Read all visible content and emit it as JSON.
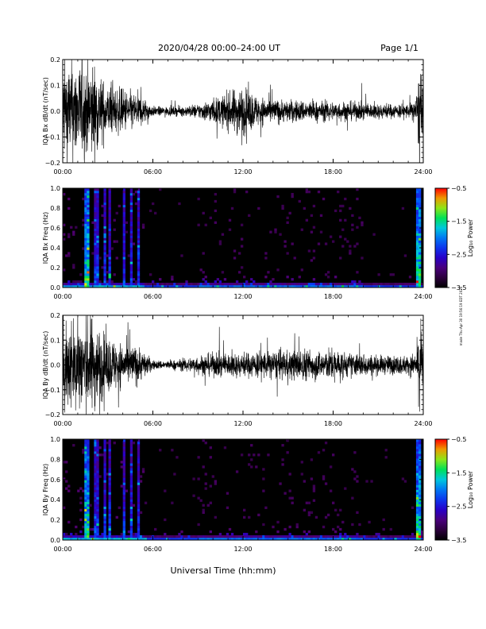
{
  "header": {
    "title": "2020/04/28  00:00–24:00 UT",
    "page_label": "Page 1/1"
  },
  "footer": {
    "xlabel": "Universal Time (hh:mm)"
  },
  "side_stamp": "made Thu Apr 30 19:56:19 EDT 2020",
  "chart_data": [
    {
      "type": "line",
      "panel": "bx-ts",
      "ylabel": "IQA Bx dB/dt (nT/sec)",
      "xlim": [
        0,
        24
      ],
      "ylim": [
        -0.2,
        0.2
      ],
      "x_ticks": [
        "00:00",
        "06:00",
        "12:00",
        "18:00",
        "24:00"
      ],
      "y_ticks": [
        "−0.2",
        "−0.1",
        "0.0",
        "0.1",
        "0.2"
      ],
      "envelope_hours": [
        0,
        1,
        1.5,
        2,
        2.5,
        3,
        4,
        5,
        5.5,
        6,
        7,
        8,
        9,
        10,
        11,
        11.7,
        12.3,
        13,
        14,
        15,
        16,
        17,
        18,
        19,
        20,
        21,
        22,
        23,
        23.5,
        23.8,
        24
      ],
      "envelope_amplitude": [
        0.2,
        0.2,
        0.18,
        0.2,
        0.14,
        0.1,
        0.09,
        0.07,
        0.05,
        0.02,
        0.018,
        0.02,
        0.03,
        0.05,
        0.07,
        0.1,
        0.09,
        0.06,
        0.05,
        0.045,
        0.045,
        0.04,
        0.04,
        0.04,
        0.035,
        0.03,
        0.03,
        0.03,
        0.05,
        0.2,
        0.05
      ]
    },
    {
      "type": "heatmap",
      "panel": "bx-spec",
      "ylabel": "IQA Bx Freq (Hz)",
      "xlim": [
        0,
        24
      ],
      "ylim": [
        0,
        1
      ],
      "x_ticks": [
        "00:00",
        "06:00",
        "12:00",
        "18:00",
        "24:00"
      ],
      "y_ticks": [
        "0.0",
        "0.2",
        "0.4",
        "0.6",
        "0.8",
        "1.0"
      ],
      "colorbar": {
        "label": "Log₁₀ Power",
        "range": [
          -3.5,
          -0.5
        ],
        "ticks": [
          "−0.5",
          "−1.5",
          "−2.5",
          "−3.5"
        ]
      }
    },
    {
      "type": "line",
      "panel": "by-ts",
      "ylabel": "IQA By dB/dt (nT/sec)",
      "xlim": [
        0,
        24
      ],
      "ylim": [
        -0.2,
        0.2
      ],
      "x_ticks": [
        "00:00",
        "06:00",
        "12:00",
        "18:00",
        "24:00"
      ],
      "y_ticks": [
        "−0.2",
        "−0.1",
        "0.0",
        "0.1",
        "0.2"
      ],
      "envelope_hours": [
        0,
        1,
        1.5,
        2,
        2.5,
        3,
        4,
        5,
        5.5,
        6,
        7,
        8,
        9,
        10,
        11,
        12,
        13,
        14,
        15,
        16,
        17,
        18,
        19,
        20,
        21,
        22,
        23,
        23.5,
        23.8,
        24
      ],
      "envelope_amplitude": [
        0.2,
        0.2,
        0.2,
        0.2,
        0.15,
        0.12,
        0.09,
        0.08,
        0.05,
        0.02,
        0.018,
        0.025,
        0.04,
        0.05,
        0.05,
        0.05,
        0.06,
        0.06,
        0.06,
        0.07,
        0.06,
        0.07,
        0.05,
        0.05,
        0.04,
        0.04,
        0.04,
        0.05,
        0.2,
        0.05
      ]
    },
    {
      "type": "heatmap",
      "panel": "by-spec",
      "ylabel": "IQA By Freq (Hz)",
      "xlim": [
        0,
        24
      ],
      "ylim": [
        0,
        1
      ],
      "x_ticks": [
        "00:00",
        "06:00",
        "12:00",
        "18:00",
        "24:00"
      ],
      "y_ticks": [
        "0.0",
        "0.2",
        "0.4",
        "0.6",
        "0.8",
        "1.0"
      ],
      "colorbar": {
        "label": "Log₁₀ Power",
        "range": [
          -3.5,
          -0.5
        ],
        "ticks": [
          "−0.5",
          "−1.5",
          "−2.5",
          "−3.5"
        ]
      }
    }
  ]
}
